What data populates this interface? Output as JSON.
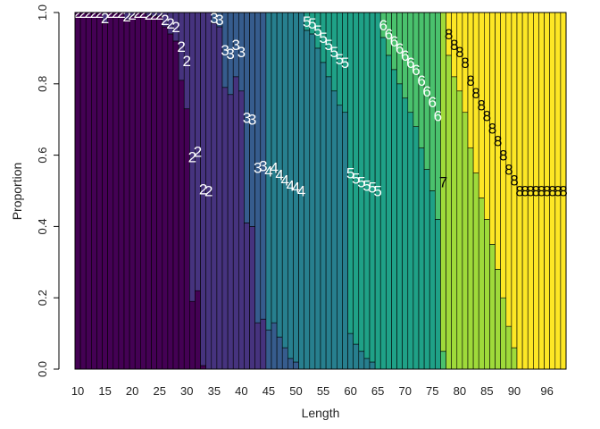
{
  "chart_data": {
    "type": "bar",
    "stacked": true,
    "orientation": "vertical",
    "title": "",
    "xlabel": "Length",
    "ylabel": "Proportion",
    "xlim": [
      10,
      99
    ],
    "ylim": [
      0,
      1
    ],
    "x_ticks": [
      "10",
      "15",
      "20",
      "25",
      "30",
      "35",
      "40",
      "45",
      "50",
      "55",
      "60",
      "65",
      "70",
      "75",
      "80",
      "85",
      "90",
      "96"
    ],
    "y_ticks": [
      "0.0",
      "0.2",
      "0.4",
      "0.6",
      "0.8",
      "1.0"
    ],
    "grid": false,
    "legend": "none",
    "bar_labels": "cluster numbers printed at segment midpoints",
    "series_names": [
      "1",
      "2",
      "3",
      "4",
      "5",
      "6",
      "7",
      "8"
    ],
    "series_colors": [
      "#440154",
      "#46337e",
      "#365c8d",
      "#277f8e",
      "#1fa187",
      "#4ac16d",
      "#9fda3a",
      "#fde725"
    ],
    "boundaries": [
      {
        "x": 10,
        "b": [
          1.0
        ]
      },
      {
        "x": 11,
        "b": [
          1.0
        ]
      },
      {
        "x": 12,
        "b": [
          1.0
        ]
      },
      {
        "x": 13,
        "b": [
          1.0
        ]
      },
      {
        "x": 14,
        "b": [
          1.0
        ]
      },
      {
        "x": 15,
        "b": [
          0.97
        ]
      },
      {
        "x": 16,
        "b": [
          1.0
        ]
      },
      {
        "x": 17,
        "b": [
          1.0
        ]
      },
      {
        "x": 18,
        "b": [
          1.0
        ]
      },
      {
        "x": 19,
        "b": [
          0.98
        ]
      },
      {
        "x": 20,
        "b": [
          0.99
        ]
      },
      {
        "x": 21,
        "b": [
          1.0
        ]
      },
      {
        "x": 22,
        "b": [
          1.0
        ]
      },
      {
        "x": 23,
        "b": [
          0.99
        ]
      },
      {
        "x": 24,
        "b": [
          0.99
        ]
      },
      {
        "x": 25,
        "b": [
          0.99
        ]
      },
      {
        "x": 26,
        "b": [
          0.96
        ]
      },
      {
        "x": 27,
        "b": [
          0.94
        ]
      },
      {
        "x": 28,
        "b": [
          0.92
        ]
      },
      {
        "x": 29,
        "b": [
          0.81
        ]
      },
      {
        "x": 30,
        "b": [
          0.73
        ]
      },
      {
        "x": 31,
        "b": [
          0.19
        ]
      },
      {
        "x": 32,
        "b": [
          0.22
        ]
      },
      {
        "x": 33,
        "b": [
          0.01
        ]
      },
      {
        "x": 34,
        "b": [
          0.0
        ]
      },
      {
        "x": 35,
        "b": [
          0.0,
          0.97
        ]
      },
      {
        "x": 36,
        "b": [
          0.0,
          0.96
        ]
      },
      {
        "x": 37,
        "b": [
          0.0,
          0.79
        ]
      },
      {
        "x": 38,
        "b": [
          0.0,
          0.77
        ]
      },
      {
        "x": 39,
        "b": [
          0.0,
          0.82
        ]
      },
      {
        "x": 40,
        "b": [
          0.0,
          0.78
        ]
      },
      {
        "x": 41,
        "b": [
          0.0,
          0.41
        ]
      },
      {
        "x": 42,
        "b": [
          0.0,
          0.4
        ]
      },
      {
        "x": 43,
        "b": [
          0.0,
          0.13
        ]
      },
      {
        "x": 44,
        "b": [
          0.0,
          0.14
        ]
      },
      {
        "x": 45,
        "b": [
          0.0,
          0.0,
          0.11
        ]
      },
      {
        "x": 46,
        "b": [
          0.0,
          0.0,
          0.13
        ]
      },
      {
        "x": 47,
        "b": [
          0.0,
          0.0,
          0.09
        ]
      },
      {
        "x": 48,
        "b": [
          0.0,
          0.0,
          0.06
        ]
      },
      {
        "x": 49,
        "b": [
          0.0,
          0.0,
          0.03
        ]
      },
      {
        "x": 50,
        "b": [
          0.0,
          0.0,
          0.02
        ]
      },
      {
        "x": 51,
        "b": [
          0.0,
          0.0,
          0.0
        ]
      },
      {
        "x": 52,
        "b": [
          0.0,
          0.0,
          0.0,
          0.95
        ]
      },
      {
        "x": 53,
        "b": [
          0.0,
          0.0,
          0.0,
          0.94
        ]
      },
      {
        "x": 54,
        "b": [
          0.0,
          0.0,
          0.0,
          0.9
        ]
      },
      {
        "x": 55,
        "b": [
          0.0,
          0.0,
          0.0,
          0.86
        ]
      },
      {
        "x": 56,
        "b": [
          0.0,
          0.0,
          0.0,
          0.82
        ]
      },
      {
        "x": 57,
        "b": [
          0.0,
          0.0,
          0.0,
          0.78
        ]
      },
      {
        "x": 58,
        "b": [
          0.0,
          0.0,
          0.0,
          0.74
        ]
      },
      {
        "x": 59,
        "b": [
          0.0,
          0.0,
          0.0,
          0.72
        ]
      },
      {
        "x": 60,
        "b": [
          0.0,
          0.0,
          0.0,
          0.1
        ]
      },
      {
        "x": 61,
        "b": [
          0.0,
          0.0,
          0.0,
          0.07
        ]
      },
      {
        "x": 62,
        "b": [
          0.0,
          0.0,
          0.0,
          0.05
        ]
      },
      {
        "x": 63,
        "b": [
          0.0,
          0.0,
          0.0,
          0.03
        ]
      },
      {
        "x": 64,
        "b": [
          0.0,
          0.0,
          0.0,
          0.02
        ]
      },
      {
        "x": 65,
        "b": [
          0.0,
          0.0,
          0.0,
          0.0
        ]
      },
      {
        "x": 66,
        "b": [
          0.0,
          0.0,
          0.0,
          0.0,
          0.93
        ]
      },
      {
        "x": 67,
        "b": [
          0.0,
          0.0,
          0.0,
          0.0,
          0.88
        ]
      },
      {
        "x": 68,
        "b": [
          0.0,
          0.0,
          0.0,
          0.0,
          0.84
        ]
      },
      {
        "x": 69,
        "b": [
          0.0,
          0.0,
          0.0,
          0.0,
          0.8
        ]
      },
      {
        "x": 70,
        "b": [
          0.0,
          0.0,
          0.0,
          0.0,
          0.76
        ]
      },
      {
        "x": 71,
        "b": [
          0.0,
          0.0,
          0.0,
          0.0,
          0.72
        ]
      },
      {
        "x": 72,
        "b": [
          0.0,
          0.0,
          0.0,
          0.0,
          0.68
        ]
      },
      {
        "x": 73,
        "b": [
          0.0,
          0.0,
          0.0,
          0.0,
          0.62
        ]
      },
      {
        "x": 74,
        "b": [
          0.0,
          0.0,
          0.0,
          0.0,
          0.56
        ]
      },
      {
        "x": 75,
        "b": [
          0.0,
          0.0,
          0.0,
          0.0,
          0.5
        ]
      },
      {
        "x": 76,
        "b": [
          0.0,
          0.0,
          0.0,
          0.0,
          0.42
        ]
      },
      {
        "x": 77,
        "b": [
          0.0,
          0.0,
          0.0,
          0.0,
          0.0,
          0.05
        ]
      },
      {
        "x": 78,
        "b": [
          0.0,
          0.0,
          0.0,
          0.0,
          0.0,
          0.0,
          0.88
        ]
      },
      {
        "x": 79,
        "b": [
          0.0,
          0.0,
          0.0,
          0.0,
          0.0,
          0.0,
          0.82
        ]
      },
      {
        "x": 80,
        "b": [
          0.0,
          0.0,
          0.0,
          0.0,
          0.0,
          0.0,
          0.78
        ]
      },
      {
        "x": 81,
        "b": [
          0.0,
          0.0,
          0.0,
          0.0,
          0.0,
          0.0,
          0.72
        ]
      },
      {
        "x": 82,
        "b": [
          0.0,
          0.0,
          0.0,
          0.0,
          0.0,
          0.0,
          0.62
        ]
      },
      {
        "x": 83,
        "b": [
          0.0,
          0.0,
          0.0,
          0.0,
          0.0,
          0.0,
          0.55
        ]
      },
      {
        "x": 84,
        "b": [
          0.0,
          0.0,
          0.0,
          0.0,
          0.0,
          0.0,
          0.48
        ]
      },
      {
        "x": 85,
        "b": [
          0.0,
          0.0,
          0.0,
          0.0,
          0.0,
          0.0,
          0.42
        ]
      },
      {
        "x": 86,
        "b": [
          0.0,
          0.0,
          0.0,
          0.0,
          0.0,
          0.0,
          0.35
        ]
      },
      {
        "x": 87,
        "b": [
          0.0,
          0.0,
          0.0,
          0.0,
          0.0,
          0.0,
          0.28
        ]
      },
      {
        "x": 88,
        "b": [
          0.0,
          0.0,
          0.0,
          0.0,
          0.0,
          0.0,
          0.2
        ]
      },
      {
        "x": 89,
        "b": [
          0.0,
          0.0,
          0.0,
          0.0,
          0.0,
          0.0,
          0.12
        ]
      },
      {
        "x": 90,
        "b": [
          0.0,
          0.0,
          0.0,
          0.0,
          0.0,
          0.0,
          0.06
        ]
      },
      {
        "x": 91,
        "b": [
          0.0,
          0.0,
          0.0,
          0.0,
          0.0,
          0.0,
          0.0
        ]
      },
      {
        "x": 92,
        "b": [
          0.0,
          0.0,
          0.0,
          0.0,
          0.0,
          0.0,
          0.0
        ]
      },
      {
        "x": 93,
        "b": [
          0.0,
          0.0,
          0.0,
          0.0,
          0.0,
          0.0,
          0.0
        ]
      },
      {
        "x": 94,
        "b": [
          0.0,
          0.0,
          0.0,
          0.0,
          0.0,
          0.0,
          0.0
        ]
      },
      {
        "x": 95,
        "b": [
          0.0,
          0.0,
          0.0,
          0.0,
          0.0,
          0.0,
          0.0
        ]
      },
      {
        "x": 96,
        "b": [
          0.0,
          0.0,
          0.0,
          0.0,
          0.0,
          0.0,
          0.0
        ]
      },
      {
        "x": 97,
        "b": [
          0.0,
          0.0,
          0.0,
          0.0,
          0.0,
          0.0,
          0.0
        ]
      },
      {
        "x": 98,
        "b": [
          0.0,
          0.0,
          0.0,
          0.0,
          0.0,
          0.0,
          0.0
        ]
      },
      {
        "x": 99,
        "b": [
          0.0,
          0.0,
          0.0,
          0.0,
          0.0,
          0.0,
          0.0
        ]
      }
    ]
  }
}
